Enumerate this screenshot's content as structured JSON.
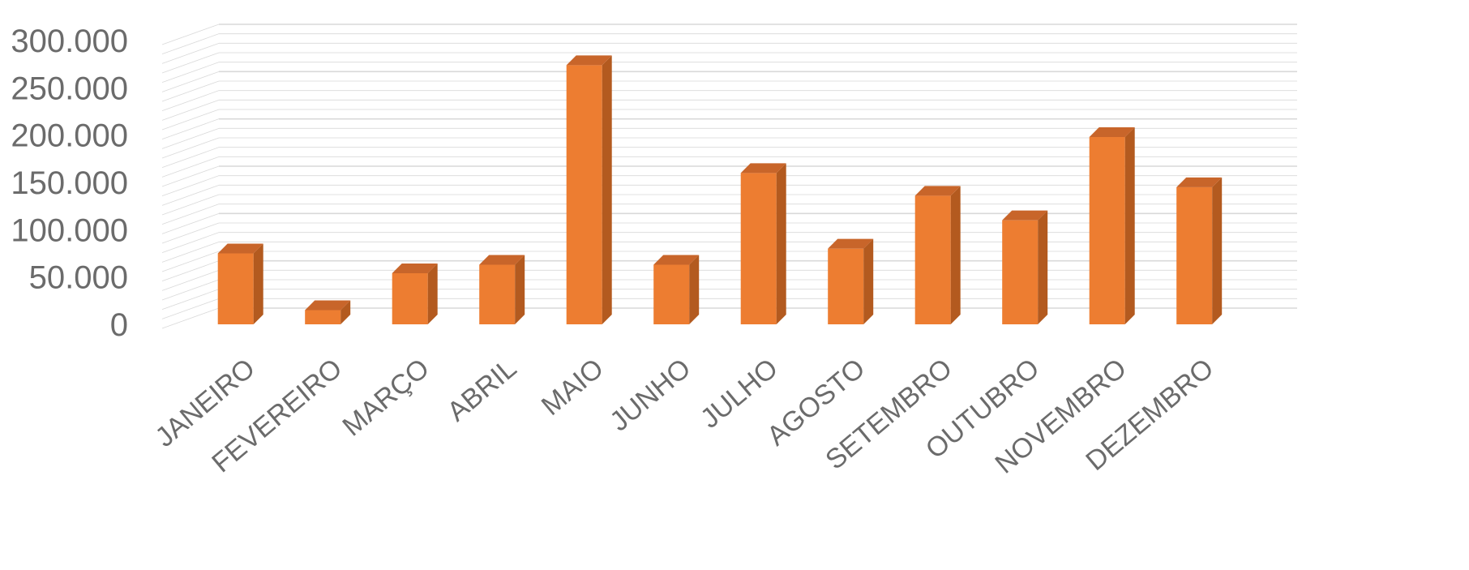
{
  "chart_data": {
    "type": "bar",
    "style": "3d-column",
    "categories": [
      "JANEIRO",
      "FEVEREIRO",
      "MARÇO",
      "ABRIL",
      "MAIO",
      "JUNHO",
      "JULHO",
      "AGOSTO",
      "SETEMBRO",
      "OUTUBRO",
      "NOVEMBRO",
      "DEZEMBRO"
    ],
    "values": [
      75000,
      15000,
      54000,
      63000,
      274000,
      63000,
      160000,
      80000,
      136000,
      110000,
      198000,
      145000
    ],
    "ylim": [
      0,
      300000
    ],
    "yticks": [
      0,
      50000,
      100000,
      150000,
      200000,
      250000,
      300000
    ],
    "ytick_labels": [
      "0",
      "50.000",
      "100.000",
      "150.000",
      "200.000",
      "250.000",
      "300.000"
    ],
    "grid": true,
    "legend": "none",
    "colors": {
      "bar_front": "#ed7d31",
      "bar_side": "#b35a1f",
      "bar_top": "#c8652a",
      "grid": "#d9d9d9",
      "text": "#6b6b6b"
    }
  }
}
